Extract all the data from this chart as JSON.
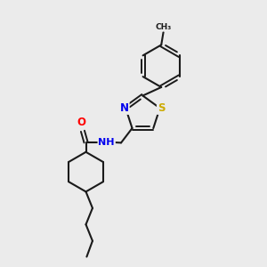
{
  "background_color": "#ebebeb",
  "bond_color": "#1a1a1a",
  "atom_colors": {
    "O": "#ff0000",
    "N": "#0000ee",
    "S": "#ccaa00",
    "C": "#1a1a1a"
  },
  "figsize": [
    3.0,
    3.0
  ],
  "dpi": 100
}
